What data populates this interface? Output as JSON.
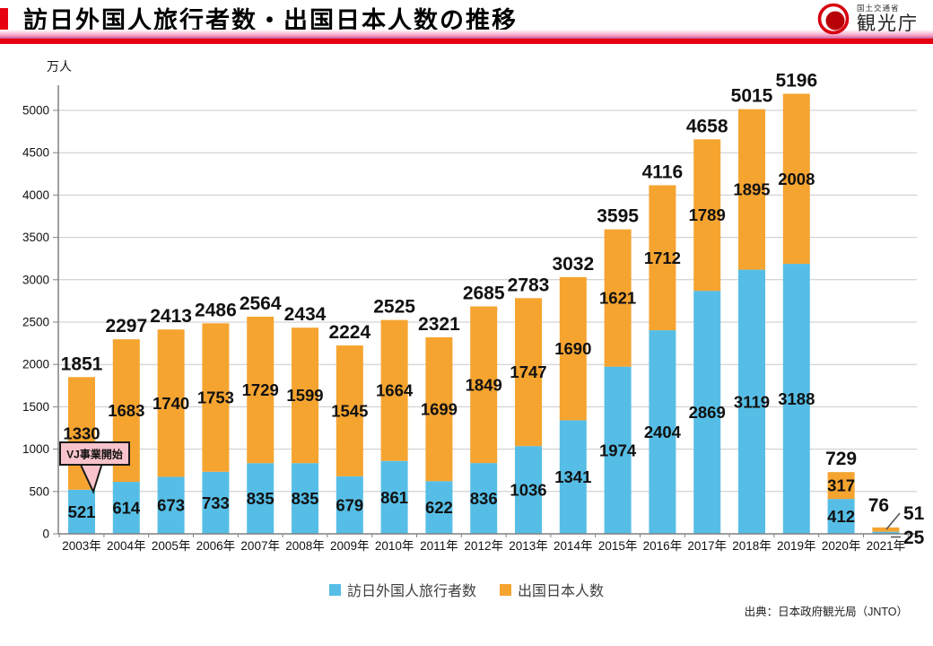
{
  "header": {
    "title": "訪日外国人旅行者数・出国日本人数の推移",
    "logo": {
      "ministry": "国土交通省",
      "agency": "観光庁"
    }
  },
  "chart_data": {
    "type": "bar",
    "stacked": true,
    "title": "訪日外国人旅行者数・出国日本人数の推移",
    "unit_label": "万人",
    "categories": [
      "2003年",
      "2004年",
      "2005年",
      "2006年",
      "2007年",
      "2008年",
      "2009年",
      "2010年",
      "2011年",
      "2012年",
      "2013年",
      "2014年",
      "2015年",
      "2016年",
      "2017年",
      "2018年",
      "2019年",
      "2020年",
      "2021年"
    ],
    "series": [
      {
        "name": "訪日外国人旅行者数",
        "color": "#56BEE6",
        "values": [
          521,
          614,
          673,
          733,
          835,
          835,
          679,
          861,
          622,
          836,
          1036,
          1341,
          1974,
          2404,
          2869,
          3119,
          3188,
          412,
          25
        ]
      },
      {
        "name": "出国日本人数",
        "color": "#F5A430",
        "values": [
          1330,
          1683,
          1740,
          1753,
          1729,
          1599,
          1545,
          1664,
          1699,
          1849,
          1747,
          1690,
          1621,
          1712,
          1789,
          1895,
          2008,
          317,
          51
        ]
      }
    ],
    "totals": [
      1851,
      2297,
      2413,
      2486,
      2564,
      2434,
      2224,
      2525,
      2321,
      2685,
      2783,
      3032,
      3595,
      4116,
      4658,
      5015,
      5196,
      729,
      76
    ],
    "ylim": [
      0,
      5300
    ],
    "ytick_step": 500,
    "ytick_max": 5000,
    "grid": true,
    "legend_position": "bottom",
    "annotation": {
      "text": "VJ事業開始",
      "target_category": "2003年"
    },
    "callout_2021": {
      "total_label": "76",
      "outbound_label": "51",
      "inbound_label": "25"
    }
  },
  "legend": {
    "items": [
      {
        "label": "訪日外国人旅行者数",
        "color": "#56BEE6"
      },
      {
        "label": "出国日本人数",
        "color": "#F5A430"
      }
    ]
  },
  "source": "出典：日本政府観光局（JNTO）",
  "colors": {
    "grid": "#C9C9C9",
    "axis": "#808080",
    "label": "#111111",
    "annotation_fill": "#F8C3CB",
    "annotation_border": "#1A1A1A",
    "header_red": "#E60012"
  }
}
